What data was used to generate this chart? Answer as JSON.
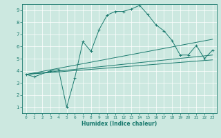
{
  "title": "",
  "xlabel": "Humidex (Indice chaleur)",
  "xlim": [
    -0.5,
    23.5
  ],
  "ylim": [
    0.5,
    9.5
  ],
  "xticks": [
    0,
    1,
    2,
    3,
    4,
    5,
    6,
    7,
    8,
    9,
    10,
    11,
    12,
    13,
    14,
    15,
    16,
    17,
    18,
    19,
    20,
    21,
    22,
    23
  ],
  "yticks": [
    1,
    2,
    3,
    4,
    5,
    6,
    7,
    8,
    9
  ],
  "bg_color": "#cce8e0",
  "line_color": "#1a7a6e",
  "grid_color": "#ffffff",
  "lines": [
    {
      "x": [
        0,
        1,
        3,
        4,
        5,
        6,
        7,
        8,
        9,
        10,
        11,
        12,
        13,
        14,
        15,
        16,
        17,
        18,
        19,
        20,
        21,
        22,
        23
      ],
      "y": [
        3.7,
        3.5,
        4.0,
        4.1,
        1.0,
        3.4,
        6.4,
        5.6,
        7.4,
        8.6,
        8.9,
        8.9,
        9.1,
        9.4,
        8.65,
        7.8,
        7.3,
        6.5,
        5.3,
        5.3,
        6.1,
        5.0,
        5.7
      ],
      "marker": true
    },
    {
      "x": [
        0,
        23
      ],
      "y": [
        3.7,
        6.6
      ],
      "marker": false
    },
    {
      "x": [
        0,
        23
      ],
      "y": [
        3.7,
        5.3
      ],
      "marker": false
    },
    {
      "x": [
        0,
        23
      ],
      "y": [
        3.7,
        4.9
      ],
      "marker": false
    }
  ],
  "xlabel_fontsize": 5.5,
  "tick_fontsize": 5.0,
  "tick_fontsize_x": 4.2
}
